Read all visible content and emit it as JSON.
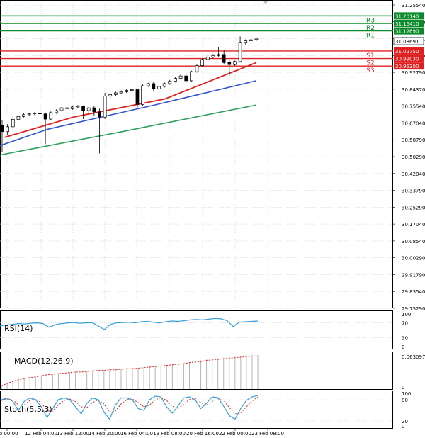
{
  "chart_data": {
    "type": "candlestick",
    "main": {
      "x_ticks": [
        "eb 00:00",
        "12 Feb 04:00",
        "13 Feb 12:00",
        "14 Feb 20:00",
        "16 Feb 04:00",
        "19 Feb 08:00",
        "20 Feb 16:00",
        "22 Feb 00:00",
        "23 Feb 08:00"
      ],
      "y_ticks": [
        "31.25540",
        "31.17110",
        "31.08691",
        "31.00260",
        "30.92790",
        "30.84370",
        "30.75540",
        "30.67040",
        "30.58790",
        "30.50290",
        "30.42040",
        "30.33790",
        "30.25290",
        "30.17040",
        "30.08540",
        "30.00290",
        "29.91790",
        "29.83540",
        "29.75290"
      ],
      "ylim": [
        29.7529,
        31.2554
      ],
      "current_price": "31.08691",
      "candles": [
        {
          "o": 30.66,
          "h": 30.685,
          "l": 30.525,
          "c": 30.628
        },
        {
          "o": 30.628,
          "h": 30.665,
          "l": 30.61,
          "c": 30.652
        },
        {
          "o": 30.652,
          "h": 30.7,
          "l": 30.643,
          "c": 30.689
        },
        {
          "o": 30.689,
          "h": 30.708,
          "l": 30.683,
          "c": 30.703
        },
        {
          "o": 30.703,
          "h": 30.718,
          "l": 30.698,
          "c": 30.712
        },
        {
          "o": 30.712,
          "h": 30.722,
          "l": 30.706,
          "c": 30.716
        },
        {
          "o": 30.716,
          "h": 30.724,
          "l": 30.71,
          "c": 30.72
        },
        {
          "o": 30.72,
          "h": 30.728,
          "l": 30.712,
          "c": 30.716
        },
        {
          "o": 30.716,
          "h": 30.722,
          "l": 30.566,
          "c": 30.69
        },
        {
          "o": 30.69,
          "h": 30.728,
          "l": 30.686,
          "c": 30.722
        },
        {
          "o": 30.722,
          "h": 30.738,
          "l": 30.716,
          "c": 30.732
        },
        {
          "o": 30.732,
          "h": 30.75,
          "l": 30.728,
          "c": 30.746
        },
        {
          "o": 30.746,
          "h": 30.754,
          "l": 30.738,
          "c": 30.742
        },
        {
          "o": 30.742,
          "h": 30.758,
          "l": 30.736,
          "c": 30.75
        },
        {
          "o": 30.75,
          "h": 30.76,
          "l": 30.744,
          "c": 30.754
        },
        {
          "o": 30.754,
          "h": 30.758,
          "l": 30.69,
          "c": 30.732
        },
        {
          "o": 30.732,
          "h": 30.75,
          "l": 30.72,
          "c": 30.746
        },
        {
          "o": 30.746,
          "h": 30.755,
          "l": 30.706,
          "c": 30.726
        },
        {
          "o": 30.726,
          "h": 30.742,
          "l": 30.52,
          "c": 30.7
        },
        {
          "o": 30.7,
          "h": 30.82,
          "l": 30.69,
          "c": 30.805
        },
        {
          "o": 30.805,
          "h": 30.818,
          "l": 30.795,
          "c": 30.812
        },
        {
          "o": 30.812,
          "h": 30.826,
          "l": 30.806,
          "c": 30.82
        },
        {
          "o": 30.82,
          "h": 30.832,
          "l": 30.814,
          "c": 30.826
        },
        {
          "o": 30.826,
          "h": 30.838,
          "l": 30.82,
          "c": 30.832
        },
        {
          "o": 30.832,
          "h": 30.84,
          "l": 30.82,
          "c": 30.836
        },
        {
          "o": 30.836,
          "h": 30.842,
          "l": 30.742,
          "c": 30.762
        },
        {
          "o": 30.762,
          "h": 30.862,
          "l": 30.755,
          "c": 30.855
        },
        {
          "o": 30.855,
          "h": 30.87,
          "l": 30.85,
          "c": 30.866
        },
        {
          "o": 30.866,
          "h": 30.876,
          "l": 30.826,
          "c": 30.84
        },
        {
          "o": 30.84,
          "h": 30.86,
          "l": 30.72,
          "c": 30.852
        },
        {
          "o": 30.852,
          "h": 30.872,
          "l": 30.846,
          "c": 30.866
        },
        {
          "o": 30.866,
          "h": 30.884,
          "l": 30.86,
          "c": 30.878
        },
        {
          "o": 30.878,
          "h": 30.898,
          "l": 30.872,
          "c": 30.892
        },
        {
          "o": 30.892,
          "h": 30.91,
          "l": 30.886,
          "c": 30.904
        },
        {
          "o": 30.904,
          "h": 30.916,
          "l": 30.87,
          "c": 30.88
        },
        {
          "o": 30.88,
          "h": 30.93,
          "l": 30.876,
          "c": 30.925
        },
        {
          "o": 30.925,
          "h": 30.96,
          "l": 30.92,
          "c": 30.955
        },
        {
          "o": 30.955,
          "h": 30.99,
          "l": 30.95,
          "c": 30.985
        },
        {
          "o": 30.985,
          "h": 31.005,
          "l": 30.98,
          "c": 30.998
        },
        {
          "o": 30.998,
          "h": 31.012,
          "l": 30.99,
          "c": 31.005
        },
        {
          "o": 31.005,
          "h": 31.045,
          "l": 30.998,
          "c": 31.01
        },
        {
          "o": 31.01,
          "h": 31.03,
          "l": 30.96,
          "c": 30.97
        },
        {
          "o": 30.97,
          "h": 30.985,
          "l": 30.905,
          "c": 30.96
        },
        {
          "o": 30.96,
          "h": 30.98,
          "l": 30.955,
          "c": 30.975
        },
        {
          "o": 30.975,
          "h": 31.1,
          "l": 30.97,
          "c": 31.07
        },
        {
          "o": 31.07,
          "h": 31.085,
          "l": 31.06,
          "c": 31.078
        },
        {
          "o": 31.078,
          "h": 31.09,
          "l": 31.072,
          "c": 31.083
        },
        {
          "o": 31.083,
          "h": 31.092,
          "l": 31.078,
          "c": 31.087
        }
      ],
      "ma_red": [
        [
          30.605,
          30.6
        ],
        [
          30.74,
          30.7
        ],
        [
          30.92,
          30.79
        ],
        [
          31.1,
          30.97
        ]
      ],
      "ma_blue": [
        [
          30.505,
          30.48
        ],
        [
          30.69,
          30.64
        ],
        [
          30.9,
          30.76
        ],
        [
          31.1,
          30.88
        ]
      ],
      "ma_green": [
        [
          30.385,
          30.385
        ],
        [
          30.55,
          30.49
        ],
        [
          30.84,
          30.63
        ],
        [
          31.1,
          30.76
        ]
      ],
      "levels": [
        {
          "label": "R3",
          "value": "31.20140",
          "v": 31.2014,
          "color": "#0a8a2a"
        },
        {
          "label": "R2",
          "value": "31.16410",
          "v": 31.1641,
          "color": "#0a8a2a"
        },
        {
          "label": "R1",
          "value": "31.12690",
          "v": 31.1269,
          "color": "#0a8a2a"
        },
        {
          "label": "S1",
          "value": "31.02750",
          "v": 31.0275,
          "color": "#e02020"
        },
        {
          "label": "S2",
          "value": "30.99030",
          "v": 30.9903,
          "color": "#e02020"
        },
        {
          "label": "S3",
          "value": "30.95300",
          "v": 30.953,
          "color": "#e02020"
        }
      ]
    },
    "rsi": {
      "title": "RSI(14)",
      "y_ticks": [
        "100",
        "70",
        "30",
        "0"
      ],
      "values": [
        62,
        64,
        66,
        68,
        67,
        69,
        70,
        68,
        58,
        65,
        68,
        70,
        71,
        69,
        70,
        71,
        62,
        52,
        66,
        70,
        71,
        72,
        70,
        73,
        74,
        72,
        70,
        73,
        75,
        74,
        76,
        78,
        79,
        78,
        80,
        82,
        81,
        76,
        60,
        72,
        73,
        74,
        75
      ]
    },
    "macd": {
      "title": "MACD(12,26,9)",
      "y_ticks": [
        "0.063097",
        "0"
      ],
      "values": [
        0.005,
        0.012,
        0.016,
        0.019,
        0.021,
        0.022,
        0.023,
        0.025,
        0.027,
        0.028,
        0.029,
        0.03,
        0.031,
        0.032,
        0.032,
        0.033,
        0.034,
        0.035,
        0.035,
        0.036,
        0.036,
        0.037,
        0.038,
        0.038,
        0.039,
        0.04,
        0.041,
        0.042,
        0.043,
        0.044,
        0.045,
        0.046,
        0.047,
        0.049,
        0.05,
        0.052,
        0.054,
        0.055,
        0.056,
        0.057,
        0.058,
        0.059,
        0.06,
        0.061,
        0.062,
        0.062
      ],
      "signal": [
        0.006,
        0.01,
        0.014,
        0.017,
        0.019,
        0.021,
        0.022,
        0.024,
        0.026,
        0.027,
        0.028,
        0.029,
        0.03,
        0.031,
        0.031,
        0.032,
        0.033,
        0.034,
        0.034,
        0.035,
        0.035,
        0.036,
        0.037,
        0.037,
        0.038,
        0.039,
        0.04,
        0.041,
        0.042,
        0.043,
        0.044,
        0.045,
        0.046,
        0.048,
        0.049,
        0.05,
        0.052,
        0.053,
        0.054,
        0.055,
        0.056,
        0.057,
        0.058,
        0.059,
        0.06,
        0.06
      ]
    },
    "stoch": {
      "title": "Stoch(5,5,3)",
      "y_ticks": [
        "100",
        "80",
        "20",
        "0"
      ],
      "k": [
        80,
        85,
        75,
        50,
        75,
        85,
        80,
        60,
        30,
        55,
        80,
        85,
        80,
        60,
        40,
        70,
        85,
        80,
        45,
        25,
        65,
        85,
        85,
        80,
        55,
        50,
        80,
        90,
        88,
        60,
        42,
        62,
        85,
        88,
        80,
        55,
        70,
        88,
        86,
        62,
        35,
        25,
        55,
        78,
        88,
        92
      ],
      "d": [
        78,
        82,
        80,
        65,
        65,
        78,
        82,
        72,
        48,
        48,
        65,
        78,
        82,
        75,
        60,
        58,
        72,
        80,
        68,
        45,
        48,
        68,
        80,
        82,
        72,
        60,
        65,
        80,
        86,
        78,
        62,
        55,
        68,
        80,
        84,
        72,
        65,
        75,
        84,
        78,
        58,
        40,
        42,
        60,
        76,
        88
      ]
    }
  }
}
